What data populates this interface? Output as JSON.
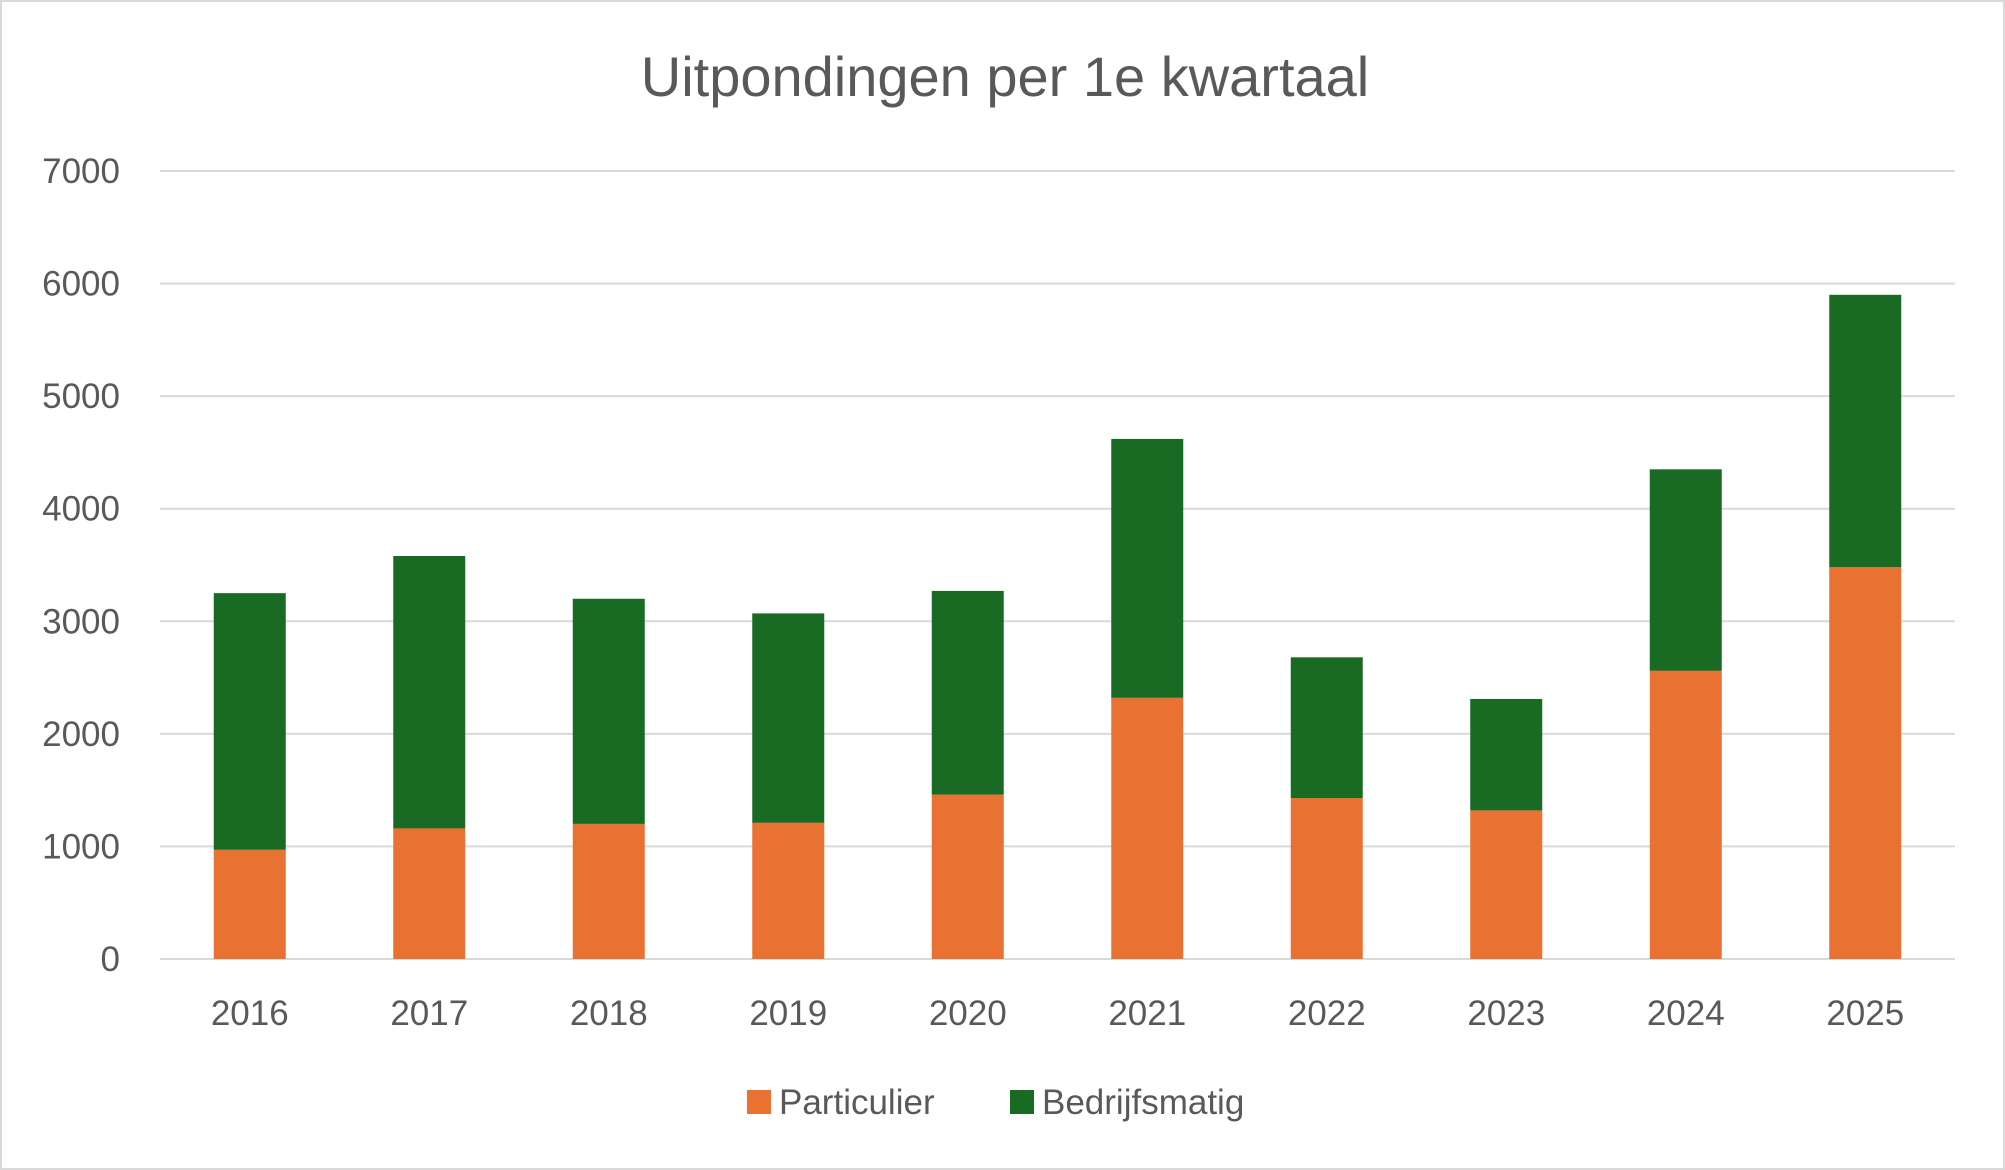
{
  "chart_data": {
    "type": "bar",
    "stacked": true,
    "title": "Uitpondingen per 1e kwartaal",
    "xlabel": "",
    "ylabel": "",
    "ylim": [
      0,
      7000
    ],
    "yticks": [
      "0",
      "1000",
      "2000",
      "3000",
      "4000",
      "5000",
      "6000",
      "7000"
    ],
    "categories": [
      "2016",
      "2017",
      "2018",
      "2019",
      "2020",
      "2021",
      "2022",
      "2023",
      "2024",
      "2025"
    ],
    "series": [
      {
        "name": "Particulier",
        "color": "#e97132",
        "values": [
          970,
          1160,
          1200,
          1210,
          1460,
          2320,
          1430,
          1320,
          2560,
          3480
        ]
      },
      {
        "name": "Bedrijfsmatig",
        "color": "#196b24",
        "values": [
          2280,
          2420,
          2000,
          1860,
          1810,
          2300,
          1250,
          990,
          1790,
          2420
        ]
      }
    ],
    "grid": true,
    "legend": "bottom"
  }
}
